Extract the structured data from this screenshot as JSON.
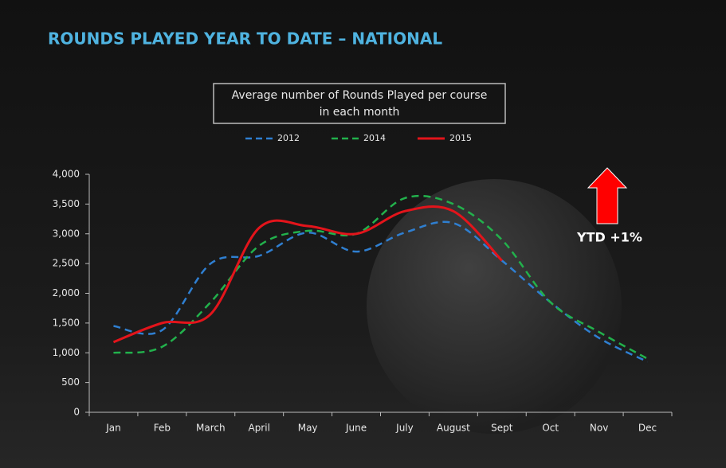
{
  "chart_data": {
    "type": "line",
    "title": "ROUNDS PLAYED YEAR TO DATE – NATIONAL",
    "subtitle": [
      "Average number of Rounds Played per course",
      "in each month"
    ],
    "annotation": "YTD +1%",
    "categories": [
      "Jan",
      "Feb",
      "March",
      "April",
      "May",
      "June",
      "July",
      "August",
      "Sept",
      "Oct",
      "Nov",
      "Dec"
    ],
    "series": [
      {
        "name": "2012",
        "color": "#2f7fd1",
        "dash": true,
        "values": [
          1450,
          1380,
          2500,
          2630,
          3020,
          2700,
          3020,
          3180,
          2550,
          1850,
          1250,
          850
        ]
      },
      {
        "name": "2014",
        "color": "#22b14c",
        "dash": true,
        "values": [
          1000,
          1100,
          1850,
          2800,
          3050,
          3000,
          3600,
          3500,
          2900,
          1850,
          1350,
          900
        ]
      },
      {
        "name": "2015",
        "color": "#e3141b",
        "dash": false,
        "values": [
          1180,
          1500,
          1650,
          3100,
          3130,
          3000,
          3380,
          3380,
          2550,
          null,
          null,
          null
        ]
      }
    ],
    "ylim": [
      0,
      4000
    ],
    "yticks": [
      0,
      500,
      {
        "value": 1000,
        "label": "1,000"
      },
      {
        "value": 1500,
        "label": "1,500"
      },
      {
        "value": 2000,
        "label": "2,000"
      },
      {
        "value": 2500,
        "label": "2,500"
      },
      {
        "value": 3000,
        "label": "3,000"
      },
      {
        "value": 3500,
        "label": "3,500"
      },
      {
        "value": 4000,
        "label": "4,000"
      }
    ],
    "grid": false
  }
}
